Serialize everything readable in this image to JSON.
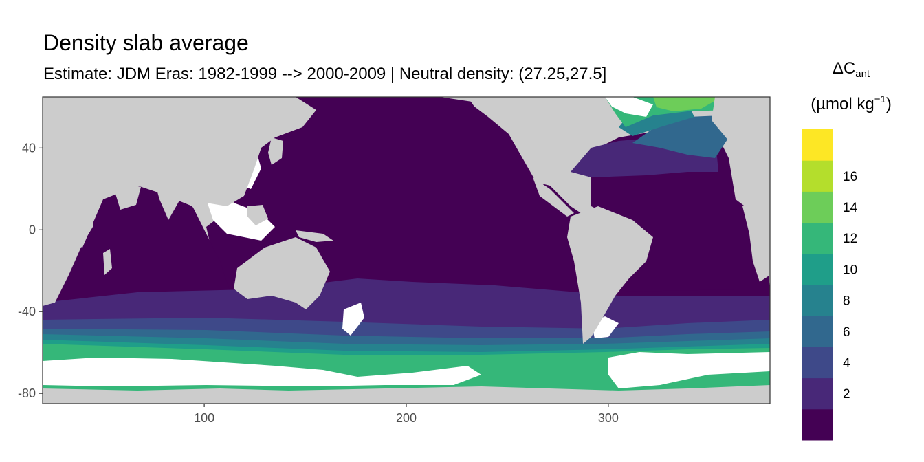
{
  "title": "Density slab average",
  "subtitle": "Estimate: JDM Eras: 1982-1999 --> 2000-2009 | Neutral density: (27.25,27.5]",
  "legend": {
    "title_symbol": "ΔC",
    "title_subscript": "ant",
    "unit_open": "(µmol kg",
    "unit_superscript": "−1",
    "unit_close": ")",
    "bins": [
      {
        "label": "",
        "color": "#440154"
      },
      {
        "label": "2",
        "color": "#482878"
      },
      {
        "label": "4",
        "color": "#3E4989"
      },
      {
        "label": "6",
        "color": "#31688E"
      },
      {
        "label": "8",
        "color": "#26828E"
      },
      {
        "label": "10",
        "color": "#1F9E89"
      },
      {
        "label": "12",
        "color": "#35B779"
      },
      {
        "label": "14",
        "color": "#6DCD59"
      },
      {
        "label": "16",
        "color": "#B4DE2C"
      },
      {
        "label": "",
        "color": "#FDE725"
      }
    ]
  },
  "map": {
    "x_range": [
      20,
      380
    ],
    "y_range": [
      -85,
      65
    ],
    "x_ticks": [
      "100",
      "200",
      "300"
    ],
    "y_ticks": [
      "40",
      "0",
      "-40",
      "-80"
    ],
    "land_color": "#cccccc",
    "no_data_color": "#ffffff"
  }
}
